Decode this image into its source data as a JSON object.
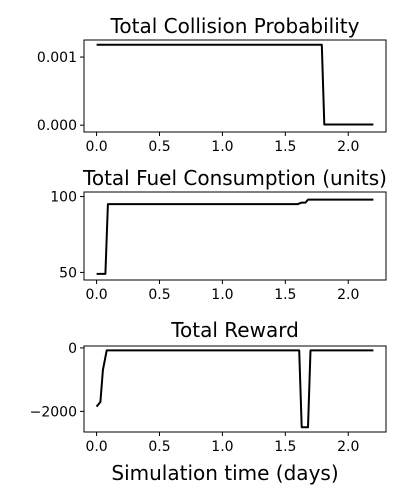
{
  "chart_data": [
    {
      "type": "line",
      "title": "Total Collision Probability",
      "xlabel": "",
      "ylabel": "",
      "xlim": [
        -0.1,
        2.3
      ],
      "ylim": [
        -0.0001,
        0.00125
      ],
      "xticks": [
        0.0,
        0.5,
        1.0,
        1.5,
        2.0
      ],
      "xtick_labels": [
        "0.0",
        "0.5",
        "1.0",
        "1.5",
        "2.0"
      ],
      "yticks": [
        0.0,
        0.001
      ],
      "ytick_labels": [
        "0.000",
        "0.001"
      ],
      "grid": false,
      "series": [
        {
          "x": [
            0.0,
            1.79,
            1.81,
            2.2
          ],
          "y": [
            0.00118,
            0.00118,
            1e-05,
            1e-05
          ]
        }
      ]
    },
    {
      "type": "line",
      "title": "Total Fuel Consumption (units)",
      "xlabel": "",
      "ylabel": "",
      "xlim": [
        -0.1,
        2.3
      ],
      "ylim": [
        45,
        103
      ],
      "xticks": [
        0.0,
        0.5,
        1.0,
        1.5,
        2.0
      ],
      "xtick_labels": [
        "0.0",
        "0.5",
        "1.0",
        "1.5",
        "2.0"
      ],
      "yticks": [
        50,
        100
      ],
      "ytick_labels": [
        "50",
        "100"
      ],
      "grid": false,
      "series": [
        {
          "x": [
            0.0,
            0.07,
            0.09,
            1.6,
            1.63,
            1.66,
            1.68,
            2.2
          ],
          "y": [
            49,
            49,
            95,
            95,
            96,
            96,
            98,
            98
          ]
        }
      ]
    },
    {
      "type": "line",
      "title": "Total Reward",
      "xlabel": "Simulation time (days)",
      "ylabel": "",
      "xlim": [
        -0.1,
        2.3
      ],
      "ylim": [
        -2650,
        60
      ],
      "xticks": [
        0.0,
        0.5,
        1.0,
        1.5,
        2.0
      ],
      "xtick_labels": [
        "0.0",
        "0.5",
        "1.0",
        "1.5",
        "2.0"
      ],
      "yticks": [
        0,
        -2000
      ],
      "ytick_labels": [
        "0",
        "−2000"
      ],
      "grid": false,
      "series": [
        {
          "x": [
            0.0,
            0.03,
            0.05,
            0.08,
            1.61,
            1.63,
            1.68,
            1.7,
            2.2
          ],
          "y": [
            -1850,
            -1700,
            -700,
            -80,
            -80,
            -2500,
            -2500,
            -80,
            -80
          ]
        }
      ]
    }
  ]
}
